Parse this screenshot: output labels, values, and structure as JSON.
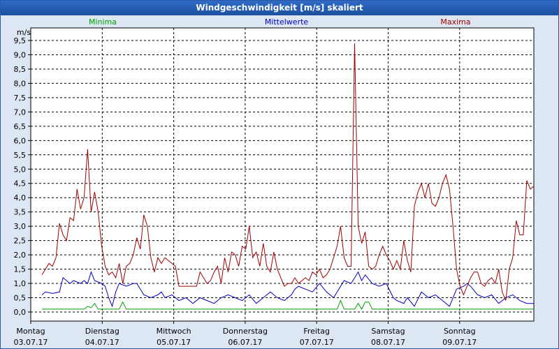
{
  "window": {
    "title": "Windgeschwindigkeit [m/s] skaliert"
  },
  "chart_data": {
    "type": "line",
    "ylabel": "m/s",
    "ylim": [
      0,
      9.8
    ],
    "yticks": [
      "0,0",
      "0,5",
      "1,0",
      "1,5",
      "2,0",
      "2,5",
      "3,0",
      "3,5",
      "4,0",
      "4,5",
      "5,0",
      "5,5",
      "6,0",
      "6,5",
      "7,0",
      "7,5",
      "8,0",
      "8,5",
      "9,0",
      "9,5"
    ],
    "xlim": [
      0,
      7
    ],
    "xticks": [
      {
        "day": "Montag",
        "date": "03.07.17"
      },
      {
        "day": "Dienstag",
        "date": "04.07.17"
      },
      {
        "day": "Mittwoch",
        "date": "05.07.17"
      },
      {
        "day": "Donnerstag",
        "date": "06.07.17"
      },
      {
        "day": "Freitag",
        "date": "07.07.17"
      },
      {
        "day": "Samstag",
        "date": "08.07.17"
      },
      {
        "day": "Sonntag",
        "date": "09.07.17"
      }
    ],
    "grid": true,
    "legend_position": "top",
    "series": [
      {
        "name": "Minima",
        "color": "#00a000",
        "points": [
          [
            0,
            0.1
          ],
          [
            0.6,
            0.1
          ],
          [
            0.65,
            0.2
          ],
          [
            0.7,
            0.15
          ],
          [
            0.75,
            0.3
          ],
          [
            0.8,
            0.1
          ],
          [
            1.0,
            0.1
          ],
          [
            1.1,
            0.1
          ],
          [
            1.15,
            0.35
          ],
          [
            1.2,
            0.1
          ],
          [
            3.0,
            0.1
          ],
          [
            4.2,
            0.1
          ],
          [
            4.25,
            0.4
          ],
          [
            4.3,
            0.1
          ],
          [
            4.45,
            0.1
          ],
          [
            4.5,
            0.3
          ],
          [
            4.55,
            0.1
          ],
          [
            4.6,
            0.35
          ],
          [
            4.65,
            0.35
          ],
          [
            4.7,
            0.1
          ],
          [
            7.0,
            0.1
          ]
        ]
      },
      {
        "name": "Mittelwerte",
        "color": "#0000c0",
        "points": [
          [
            0,
            0.6
          ],
          [
            0.05,
            0.7
          ],
          [
            0.15,
            0.65
          ],
          [
            0.25,
            0.7
          ],
          [
            0.3,
            1.2
          ],
          [
            0.4,
            1.0
          ],
          [
            0.45,
            1.1
          ],
          [
            0.55,
            1.0
          ],
          [
            0.6,
            1.1
          ],
          [
            0.65,
            1.0
          ],
          [
            0.7,
            1.4
          ],
          [
            0.75,
            1.1
          ],
          [
            0.85,
            1.0
          ],
          [
            0.9,
            0.9
          ],
          [
            0.95,
            0.5
          ],
          [
            1.0,
            0.2
          ],
          [
            1.05,
            0.7
          ],
          [
            1.1,
            1.0
          ],
          [
            1.2,
            0.9
          ],
          [
            1.3,
            1.0
          ],
          [
            1.35,
            1.0
          ],
          [
            1.45,
            0.6
          ],
          [
            1.55,
            0.5
          ],
          [
            1.65,
            0.6
          ],
          [
            1.7,
            0.7
          ],
          [
            1.75,
            0.5
          ],
          [
            1.85,
            0.6
          ],
          [
            1.95,
            0.4
          ],
          [
            2.05,
            0.5
          ],
          [
            2.15,
            0.3
          ],
          [
            2.25,
            0.5
          ],
          [
            2.35,
            0.4
          ],
          [
            2.45,
            0.3
          ],
          [
            2.55,
            0.5
          ],
          [
            2.65,
            0.6
          ],
          [
            2.75,
            0.5
          ],
          [
            2.85,
            0.4
          ],
          [
            2.95,
            0.6
          ],
          [
            3.05,
            0.3
          ],
          [
            3.15,
            0.5
          ],
          [
            3.25,
            0.7
          ],
          [
            3.35,
            0.5
          ],
          [
            3.45,
            0.4
          ],
          [
            3.55,
            0.6
          ],
          [
            3.6,
            0.8
          ],
          [
            3.65,
            0.9
          ],
          [
            3.75,
            0.8
          ],
          [
            3.85,
            0.7
          ],
          [
            3.95,
            1.0
          ],
          [
            4.05,
            0.7
          ],
          [
            4.15,
            0.5
          ],
          [
            4.25,
            0.9
          ],
          [
            4.3,
            1.1
          ],
          [
            4.4,
            1.0
          ],
          [
            4.5,
            1.4
          ],
          [
            4.55,
            1.1
          ],
          [
            4.6,
            1.3
          ],
          [
            4.7,
            1.0
          ],
          [
            4.8,
            0.9
          ],
          [
            4.9,
            1.0
          ],
          [
            5.0,
            0.5
          ],
          [
            5.05,
            0.4
          ],
          [
            5.15,
            0.3
          ],
          [
            5.2,
            0.5
          ],
          [
            5.3,
            0.2
          ],
          [
            5.4,
            0.7
          ],
          [
            5.5,
            0.5
          ],
          [
            5.6,
            0.6
          ],
          [
            5.7,
            0.4
          ],
          [
            5.75,
            0.3
          ],
          [
            5.8,
            0.2
          ],
          [
            5.9,
            0.8
          ],
          [
            6.0,
            0.9
          ],
          [
            6.05,
            1.0
          ],
          [
            6.1,
            0.9
          ],
          [
            6.2,
            0.6
          ],
          [
            6.3,
            0.5
          ],
          [
            6.4,
            0.6
          ],
          [
            6.5,
            0.3
          ],
          [
            6.6,
            0.5
          ],
          [
            6.7,
            0.6
          ],
          [
            6.8,
            0.4
          ],
          [
            6.9,
            0.3
          ],
          [
            7.0,
            0.3
          ]
        ]
      },
      {
        "name": "Maxima",
        "color": "#a00000",
        "points": [
          [
            0,
            1.3
          ],
          [
            0.05,
            1.5
          ],
          [
            0.1,
            1.7
          ],
          [
            0.15,
            1.6
          ],
          [
            0.2,
            1.9
          ],
          [
            0.25,
            3.1
          ],
          [
            0.3,
            2.7
          ],
          [
            0.35,
            2.5
          ],
          [
            0.4,
            3.3
          ],
          [
            0.45,
            3.2
          ],
          [
            0.5,
            4.3
          ],
          [
            0.55,
            3.6
          ],
          [
            0.6,
            4.0
          ],
          [
            0.65,
            5.7
          ],
          [
            0.7,
            3.5
          ],
          [
            0.75,
            4.2
          ],
          [
            0.8,
            3.5
          ],
          [
            0.85,
            2.3
          ],
          [
            0.9,
            1.6
          ],
          [
            0.95,
            1.3
          ],
          [
            1.0,
            1.4
          ],
          [
            1.05,
            1.2
          ],
          [
            1.1,
            1.7
          ],
          [
            1.15,
            1.0
          ],
          [
            1.2,
            1.6
          ],
          [
            1.25,
            1.7
          ],
          [
            1.3,
            2.0
          ],
          [
            1.35,
            2.6
          ],
          [
            1.4,
            2.2
          ],
          [
            1.45,
            3.4
          ],
          [
            1.5,
            3.0
          ],
          [
            1.55,
            1.9
          ],
          [
            1.6,
            1.4
          ],
          [
            1.65,
            1.9
          ],
          [
            1.7,
            1.7
          ],
          [
            1.75,
            1.9
          ],
          [
            1.8,
            1.8
          ],
          [
            1.85,
            1.7
          ],
          [
            1.9,
            1.6
          ],
          [
            1.95,
            0.9
          ],
          [
            2.0,
            0.9
          ],
          [
            2.1,
            0.9
          ],
          [
            2.2,
            0.9
          ],
          [
            2.25,
            1.4
          ],
          [
            2.3,
            1.2
          ],
          [
            2.35,
            1.0
          ],
          [
            2.4,
            1.1
          ],
          [
            2.45,
            1.4
          ],
          [
            2.5,
            1.6
          ],
          [
            2.55,
            1.0
          ],
          [
            2.6,
            1.9
          ],
          [
            2.65,
            1.4
          ],
          [
            2.7,
            2.1
          ],
          [
            2.75,
            2.0
          ],
          [
            2.8,
            1.6
          ],
          [
            2.85,
            2.3
          ],
          [
            2.9,
            2.2
          ],
          [
            2.95,
            3.0
          ],
          [
            3.0,
            1.9
          ],
          [
            3.05,
            2.1
          ],
          [
            3.1,
            1.6
          ],
          [
            3.15,
            2.4
          ],
          [
            3.2,
            1.6
          ],
          [
            3.25,
            1.4
          ],
          [
            3.3,
            2.1
          ],
          [
            3.35,
            1.5
          ],
          [
            3.4,
            1.2
          ],
          [
            3.45,
            0.9
          ],
          [
            3.5,
            1.0
          ],
          [
            3.55,
            1.0
          ],
          [
            3.6,
            1.2
          ],
          [
            3.65,
            1.0
          ],
          [
            3.7,
            1.1
          ],
          [
            3.75,
            1.2
          ],
          [
            3.8,
            1.1
          ],
          [
            3.85,
            1.4
          ],
          [
            3.9,
            1.3
          ],
          [
            3.95,
            1.5
          ],
          [
            4.0,
            1.2
          ],
          [
            4.05,
            1.3
          ],
          [
            4.1,
            1.5
          ],
          [
            4.15,
            1.9
          ],
          [
            4.2,
            2.3
          ],
          [
            4.25,
            3.0
          ],
          [
            4.3,
            1.9
          ],
          [
            4.35,
            1.6
          ],
          [
            4.4,
            1.6
          ],
          [
            4.45,
            9.4
          ],
          [
            4.5,
            3.0
          ],
          [
            4.55,
            2.4
          ],
          [
            4.6,
            2.8
          ],
          [
            4.65,
            1.6
          ],
          [
            4.7,
            1.5
          ],
          [
            4.75,
            1.6
          ],
          [
            4.8,
            2.0
          ],
          [
            4.85,
            2.3
          ],
          [
            4.9,
            2.0
          ],
          [
            4.95,
            1.8
          ],
          [
            5.0,
            1.5
          ],
          [
            5.05,
            1.8
          ],
          [
            5.1,
            1.5
          ],
          [
            5.15,
            2.5
          ],
          [
            5.2,
            1.8
          ],
          [
            5.25,
            1.4
          ],
          [
            5.3,
            3.7
          ],
          [
            5.35,
            4.2
          ],
          [
            5.4,
            4.5
          ],
          [
            5.45,
            4.0
          ],
          [
            5.5,
            4.5
          ],
          [
            5.55,
            3.8
          ],
          [
            5.6,
            3.7
          ],
          [
            5.65,
            4.0
          ],
          [
            5.7,
            4.5
          ],
          [
            5.75,
            4.8
          ],
          [
            5.8,
            4.3
          ],
          [
            5.85,
            3.0
          ],
          [
            5.9,
            1.5
          ],
          [
            5.95,
            0.9
          ],
          [
            6.0,
            0.6
          ],
          [
            6.05,
            0.9
          ],
          [
            6.1,
            1.2
          ],
          [
            6.15,
            1.4
          ],
          [
            6.2,
            1.4
          ],
          [
            6.25,
            1.0
          ],
          [
            6.3,
            0.9
          ],
          [
            6.35,
            1.1
          ],
          [
            6.4,
            1.2
          ],
          [
            6.45,
            1.0
          ],
          [
            6.5,
            1.5
          ],
          [
            6.55,
            0.7
          ],
          [
            6.6,
            0.4
          ],
          [
            6.65,
            1.5
          ],
          [
            6.7,
            1.9
          ],
          [
            6.75,
            3.2
          ],
          [
            6.8,
            2.7
          ],
          [
            6.85,
            2.7
          ],
          [
            6.9,
            4.6
          ],
          [
            6.95,
            4.3
          ],
          [
            7.0,
            4.4
          ]
        ]
      }
    ]
  }
}
